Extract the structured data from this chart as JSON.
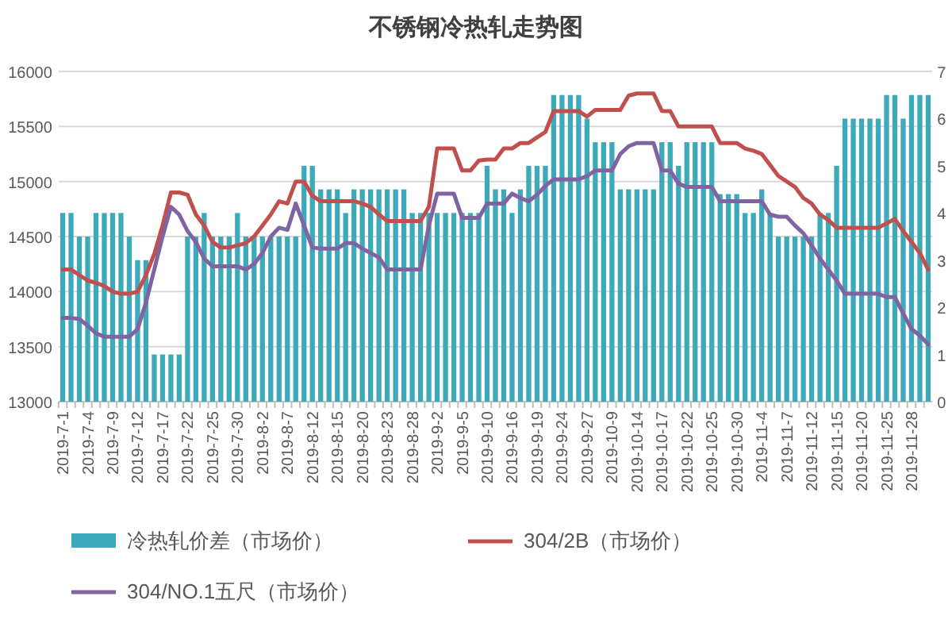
{
  "chart_data": {
    "type": "bar",
    "title": "不锈钢冷热轧走势图",
    "categories": [
      "2019-7-1",
      null,
      null,
      "2019-7-4",
      null,
      null,
      "2019-7-9",
      null,
      null,
      "2019-7-12",
      null,
      null,
      "2019-7-17",
      null,
      null,
      "2019-7-22",
      null,
      null,
      "2019-7-25",
      null,
      null,
      "2019-7-30",
      null,
      null,
      "2019-8-2",
      null,
      null,
      "2019-8-7",
      null,
      null,
      "2019-8-12",
      null,
      null,
      "2019-8-15",
      null,
      null,
      "2019-8-20",
      null,
      null,
      "2019-8-23",
      null,
      null,
      "2019-8-28",
      null,
      null,
      "2019-9-2",
      null,
      null,
      "2019-9-5",
      null,
      null,
      "2019-9-10",
      null,
      null,
      "2019-9-16",
      null,
      null,
      "2019-9-19",
      null,
      null,
      "2019-9-24",
      null,
      null,
      "2019-9-27",
      null,
      null,
      "2019-10-9",
      null,
      null,
      "2019-10-14",
      null,
      null,
      "2019-10-17",
      null,
      null,
      "2019-10-22",
      null,
      null,
      "2019-10-25",
      null,
      null,
      "2019-10-30",
      null,
      null,
      "2019-11-4",
      null,
      null,
      "2019-11-7",
      null,
      null,
      "2019-11-12",
      null,
      null,
      "2019-11-15",
      null,
      null,
      "2019-11-20",
      null,
      null,
      "2019-11-25",
      null,
      null,
      "2019-11-28",
      null,
      null
    ],
    "series": [
      {
        "name": "冷热轧价差（市场价）",
        "axis": "y2",
        "color": "#3ea9bb",
        "values": [
          4,
          4,
          3.5,
          3.5,
          4,
          4,
          4,
          4,
          3.5,
          3,
          3,
          1,
          1,
          1,
          1,
          3.5,
          3.5,
          4,
          3.5,
          3.5,
          3.5,
          4,
          3.5,
          3.5,
          3.5,
          3.5,
          3.5,
          3.5,
          3.5,
          5,
          5,
          4.5,
          4.5,
          4.5,
          4,
          4.5,
          4.5,
          4.5,
          4.5,
          4.5,
          4.5,
          4.5,
          4,
          4,
          4,
          4,
          4,
          4,
          4,
          4,
          4,
          5,
          4.5,
          4.5,
          4,
          4.5,
          5,
          5,
          5,
          6.5,
          6.5,
          6.5,
          6.5,
          6,
          5.5,
          5.5,
          5.5,
          4.5,
          4.5,
          4.5,
          4.5,
          4.5,
          5.5,
          5.5,
          5,
          5.5,
          5.5,
          5.5,
          5.5,
          4.4,
          4.4,
          4.4,
          4,
          4,
          4.5,
          4,
          3.5,
          3.5,
          3.5,
          3.5,
          3.5,
          4,
          4,
          5,
          6,
          6,
          6,
          6,
          6,
          6.5,
          6.5,
          6,
          6.5,
          6.5,
          6.5
        ]
      },
      {
        "name": "304/2B（市场价）",
        "type": "line",
        "axis": "y",
        "color": "#c0504d",
        "values": [
          14200,
          14200,
          14150,
          14100,
          14080,
          14050,
          14000,
          13980,
          13980,
          14000,
          14150,
          14340,
          14600,
          14900,
          14900,
          14880,
          14700,
          14600,
          14450,
          14400,
          14400,
          14420,
          14440,
          14500,
          14600,
          14700,
          14820,
          14800,
          15000,
          15000,
          14870,
          14820,
          14820,
          14820,
          14820,
          14820,
          14800,
          14770,
          14700,
          14640,
          14640,
          14640,
          14640,
          14640,
          14770,
          15300,
          15300,
          15300,
          15100,
          15100,
          15190,
          15200,
          15200,
          15300,
          15300,
          15350,
          15350,
          15400,
          15450,
          15640,
          15640,
          15640,
          15640,
          15590,
          15650,
          15650,
          15650,
          15650,
          15780,
          15800,
          15800,
          15800,
          15640,
          15640,
          15500,
          15500,
          15500,
          15500,
          15500,
          15350,
          15350,
          15350,
          15300,
          15280,
          15250,
          15150,
          15050,
          15000,
          14950,
          14850,
          14800,
          14700,
          14650,
          14580,
          14580,
          14580,
          14580,
          14580,
          14580,
          14620,
          14660,
          14550,
          14450,
          14350,
          14200
        ]
      },
      {
        "name": "304/NO.1五尺（市场价）",
        "type": "line",
        "axis": "y",
        "color": "#8064a2",
        "values": [
          13760,
          13760,
          13750,
          13690,
          13620,
          13590,
          13590,
          13590,
          13590,
          13660,
          13900,
          14200,
          14500,
          14770,
          14700,
          14550,
          14450,
          14300,
          14230,
          14230,
          14230,
          14230,
          14200,
          14250,
          14350,
          14500,
          14580,
          14560,
          14800,
          14600,
          14400,
          14390,
          14390,
          14390,
          14440,
          14440,
          14390,
          14350,
          14310,
          14200,
          14200,
          14200,
          14200,
          14200,
          14600,
          14890,
          14890,
          14890,
          14670,
          14670,
          14670,
          14800,
          14800,
          14800,
          14890,
          14850,
          14820,
          14880,
          14960,
          15020,
          15020,
          15020,
          15020,
          15050,
          15100,
          15100,
          15100,
          15250,
          15320,
          15350,
          15350,
          15350,
          15100,
          15100,
          14980,
          14950,
          14950,
          14950,
          14950,
          14820,
          14820,
          14820,
          14820,
          14820,
          14820,
          14700,
          14680,
          14680,
          14600,
          14530,
          14420,
          14300,
          14200,
          14100,
          13980,
          13980,
          13980,
          13980,
          13980,
          13950,
          13950,
          13800,
          13660,
          13600,
          13520
        ]
      }
    ],
    "ylim": [
      13000,
      16000
    ],
    "yticks": [
      13000,
      13500,
      14000,
      14500,
      15000,
      15500,
      16000
    ],
    "y2lim": [
      0,
      7
    ],
    "y2ticks": [
      0,
      1,
      2,
      3,
      4,
      5,
      6,
      7
    ],
    "grid": "y",
    "legend": "bottom",
    "marker": "none",
    "line_style": "solid"
  }
}
